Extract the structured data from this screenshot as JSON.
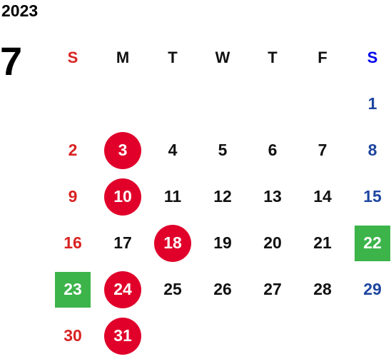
{
  "year": "2023",
  "month": "7",
  "colors": {
    "holiday_circle": "#e0002a",
    "holiday_square": "#3cb44a",
    "sunday": "#d92222",
    "saturday": "#1e46a0"
  },
  "weekdays": [
    "S",
    "M",
    "T",
    "W",
    "T",
    "F",
    "S"
  ],
  "weeks": [
    [
      {
        "d": ""
      },
      {
        "d": ""
      },
      {
        "d": ""
      },
      {
        "d": ""
      },
      {
        "d": ""
      },
      {
        "d": ""
      },
      {
        "d": "1"
      }
    ],
    [
      {
        "d": "2"
      },
      {
        "d": "3",
        "mark": "circle"
      },
      {
        "d": "4"
      },
      {
        "d": "5"
      },
      {
        "d": "6"
      },
      {
        "d": "7"
      },
      {
        "d": "8"
      }
    ],
    [
      {
        "d": "9"
      },
      {
        "d": "10",
        "mark": "circle"
      },
      {
        "d": "11"
      },
      {
        "d": "12"
      },
      {
        "d": "13"
      },
      {
        "d": "14"
      },
      {
        "d": "15"
      }
    ],
    [
      {
        "d": "16"
      },
      {
        "d": "17"
      },
      {
        "d": "18",
        "mark": "circle"
      },
      {
        "d": "19"
      },
      {
        "d": "20"
      },
      {
        "d": "21"
      },
      {
        "d": "22",
        "mark": "square"
      }
    ],
    [
      {
        "d": "23",
        "mark": "square"
      },
      {
        "d": "24",
        "mark": "circle"
      },
      {
        "d": "25"
      },
      {
        "d": "26"
      },
      {
        "d": "27"
      },
      {
        "d": "28"
      },
      {
        "d": "29"
      }
    ],
    [
      {
        "d": "30"
      },
      {
        "d": "31",
        "mark": "circle"
      },
      {
        "d": ""
      },
      {
        "d": ""
      },
      {
        "d": ""
      },
      {
        "d": ""
      },
      {
        "d": ""
      }
    ]
  ]
}
